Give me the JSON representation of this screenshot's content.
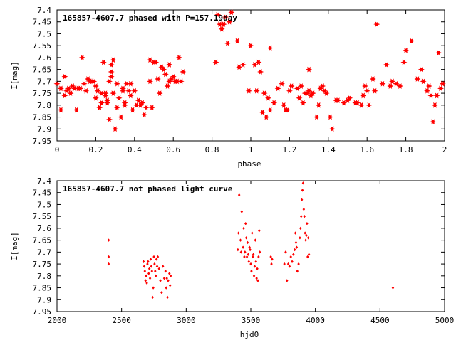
{
  "chart_data": [
    {
      "type": "scatter",
      "title": "165857-4607.7 phased with P=157.19day",
      "xlabel": "phase",
      "ylabel": "I[mag]",
      "xlim": [
        0,
        2
      ],
      "ylim": [
        7.4,
        7.95
      ],
      "y_inverted": true,
      "x_ticks": [
        "0",
        "0.2",
        "0.4",
        "0.6",
        "0.8",
        "1",
        "1.2",
        "1.4",
        "1.6",
        "1.8",
        "2"
      ],
      "y_ticks": [
        "7.4",
        "7.45",
        "7.5",
        "7.55",
        "7.6",
        "7.65",
        "7.7",
        "7.75",
        "7.8",
        "7.85",
        "7.9",
        "7.95"
      ],
      "marker_color": "#ff0000",
      "series": [
        {
          "points": [
            [
              0.0,
              7.71
            ],
            [
              0.02,
              7.73
            ],
            [
              0.02,
              7.82
            ],
            [
              0.04,
              7.76
            ],
            [
              0.04,
              7.68
            ],
            [
              0.05,
              7.74
            ],
            [
              0.06,
              7.73
            ],
            [
              0.07,
              7.75
            ],
            [
              0.08,
              7.72
            ],
            [
              0.09,
              7.73
            ],
            [
              0.1,
              7.82
            ],
            [
              0.11,
              7.73
            ],
            [
              0.12,
              7.73
            ],
            [
              0.13,
              7.6
            ],
            [
              0.14,
              7.71
            ],
            [
              0.15,
              7.74
            ],
            [
              0.16,
              7.69
            ],
            [
              0.17,
              7.7
            ],
            [
              0.18,
              7.7
            ],
            [
              0.19,
              7.7
            ],
            [
              0.2,
              7.72
            ],
            [
              0.2,
              7.77
            ],
            [
              0.21,
              7.74
            ],
            [
              0.22,
              7.81
            ],
            [
              0.23,
              7.75
            ],
            [
              0.23,
              7.79
            ],
            [
              0.24,
              7.62
            ],
            [
              0.25,
              7.76
            ],
            [
              0.25,
              7.75
            ],
            [
              0.26,
              7.78
            ],
            [
              0.26,
              7.79
            ],
            [
              0.27,
              7.86
            ],
            [
              0.27,
              7.7
            ],
            [
              0.28,
              7.66
            ],
            [
              0.28,
              7.63
            ],
            [
              0.28,
              7.68
            ],
            [
              0.29,
              7.75
            ],
            [
              0.29,
              7.61
            ],
            [
              0.3,
              7.9
            ],
            [
              0.31,
              7.71
            ],
            [
              0.31,
              7.81
            ],
            [
              0.32,
              7.77
            ],
            [
              0.33,
              7.85
            ],
            [
              0.34,
              7.74
            ],
            [
              0.34,
              7.73
            ],
            [
              0.35,
              7.8
            ],
            [
              0.35,
              7.79
            ],
            [
              0.36,
              7.71
            ],
            [
              0.37,
              7.74
            ],
            [
              0.38,
              7.71
            ],
            [
              0.38,
              7.76
            ],
            [
              0.39,
              7.82
            ],
            [
              0.4,
              7.74
            ],
            [
              0.41,
              7.8
            ],
            [
              0.42,
              7.78
            ],
            [
              0.43,
              7.8
            ],
            [
              0.44,
              7.79
            ],
            [
              0.45,
              7.84
            ],
            [
              0.46,
              7.81
            ],
            [
              0.48,
              7.7
            ],
            [
              0.48,
              7.61
            ],
            [
              0.49,
              7.81
            ],
            [
              0.5,
              7.62
            ],
            [
              0.51,
              7.62
            ],
            [
              0.52,
              7.69
            ],
            [
              0.53,
              7.75
            ],
            [
              0.54,
              7.64
            ],
            [
              0.55,
              7.65
            ],
            [
              0.56,
              7.67
            ],
            [
              0.57,
              7.72
            ],
            [
              0.58,
              7.63
            ],
            [
              0.58,
              7.7
            ],
            [
              0.59,
              7.69
            ],
            [
              0.6,
              7.68
            ],
            [
              0.61,
              7.7
            ],
            [
              0.62,
              7.7
            ],
            [
              0.63,
              7.6
            ],
            [
              0.64,
              7.7
            ],
            [
              0.65,
              7.66
            ],
            [
              0.82,
              7.62
            ],
            [
              0.83,
              7.42
            ],
            [
              0.84,
              7.46
            ],
            [
              0.85,
              7.48
            ],
            [
              0.86,
              7.46
            ],
            [
              0.87,
              7.43
            ],
            [
              0.88,
              7.54
            ],
            [
              0.89,
              7.45
            ],
            [
              0.9,
              7.41
            ],
            [
              0.93,
              7.53
            ],
            [
              0.94,
              7.64
            ],
            [
              0.96,
              7.63
            ],
            [
              0.99,
              7.74
            ],
            [
              1.0,
              7.55
            ],
            [
              1.02,
              7.63
            ],
            [
              1.03,
              7.74
            ],
            [
              1.04,
              7.62
            ],
            [
              1.05,
              7.66
            ],
            [
              1.06,
              7.83
            ],
            [
              1.07,
              7.75
            ],
            [
              1.08,
              7.85
            ],
            [
              1.09,
              7.77
            ],
            [
              1.1,
              7.56
            ],
            [
              1.1,
              7.82
            ],
            [
              1.12,
              7.79
            ],
            [
              1.14,
              7.73
            ],
            [
              1.16,
              7.71
            ],
            [
              1.17,
              7.8
            ],
            [
              1.18,
              7.82
            ],
            [
              1.19,
              7.82
            ],
            [
              1.2,
              7.74
            ],
            [
              1.21,
              7.72
            ],
            [
              1.24,
              7.73
            ],
            [
              1.25,
              7.77
            ],
            [
              1.26,
              7.72
            ],
            [
              1.27,
              7.79
            ],
            [
              1.28,
              7.75
            ],
            [
              1.29,
              7.75
            ],
            [
              1.3,
              7.74
            ],
            [
              1.3,
              7.65
            ],
            [
              1.31,
              7.76
            ],
            [
              1.32,
              7.75
            ],
            [
              1.34,
              7.85
            ],
            [
              1.35,
              7.8
            ],
            [
              1.36,
              7.73
            ],
            [
              1.37,
              7.72
            ],
            [
              1.38,
              7.74
            ],
            [
              1.39,
              7.75
            ],
            [
              1.41,
              7.85
            ],
            [
              1.42,
              7.9
            ],
            [
              1.44,
              7.78
            ],
            [
              1.45,
              7.78
            ],
            [
              1.48,
              7.79
            ],
            [
              1.5,
              7.78
            ],
            [
              1.51,
              7.77
            ],
            [
              1.54,
              7.79
            ],
            [
              1.55,
              7.79
            ],
            [
              1.57,
              7.8
            ],
            [
              1.58,
              7.76
            ],
            [
              1.59,
              7.72
            ],
            [
              1.6,
              7.74
            ],
            [
              1.61,
              7.8
            ],
            [
              1.63,
              7.69
            ],
            [
              1.64,
              7.74
            ],
            [
              1.65,
              7.46
            ],
            [
              1.68,
              7.71
            ],
            [
              1.7,
              7.63
            ],
            [
              1.72,
              7.72
            ],
            [
              1.73,
              7.7
            ],
            [
              1.75,
              7.71
            ],
            [
              1.77,
              7.72
            ],
            [
              1.79,
              7.62
            ],
            [
              1.8,
              7.57
            ],
            [
              1.83,
              7.53
            ],
            [
              1.86,
              7.69
            ],
            [
              1.88,
              7.65
            ],
            [
              1.89,
              7.7
            ],
            [
              1.91,
              7.74
            ],
            [
              1.92,
              7.72
            ],
            [
              1.93,
              7.76
            ],
            [
              1.94,
              7.87
            ],
            [
              1.95,
              7.8
            ],
            [
              1.96,
              7.76
            ],
            [
              1.97,
              7.58
            ],
            [
              1.98,
              7.73
            ],
            [
              1.99,
              7.71
            ]
          ]
        }
      ]
    },
    {
      "type": "scatter",
      "title": "165857-4607.7 not phased light curve",
      "xlabel": "hjd0",
      "ylabel": "I[mag]",
      "xlim": [
        2000,
        5000
      ],
      "ylim": [
        7.4,
        7.95
      ],
      "y_inverted": true,
      "x_ticks": [
        "2000",
        "2500",
        "3000",
        "3500",
        "4000",
        "4500",
        "5000"
      ],
      "y_ticks": [
        "7.4",
        "7.45",
        "7.5",
        "7.55",
        "7.6",
        "7.65",
        "7.7",
        "7.75",
        "7.8",
        "7.85",
        "7.9",
        "7.95"
      ],
      "marker_color": "#ff0000",
      "series": [
        {
          "points": [
            [
              2400,
              7.65
            ],
            [
              2400,
              7.72
            ],
            [
              2400,
              7.75
            ],
            [
              2670,
              7.74
            ],
            [
              2675,
              7.76
            ],
            [
              2680,
              7.78
            ],
            [
              2685,
              7.82
            ],
            [
              2690,
              7.8
            ],
            [
              2695,
              7.83
            ],
            [
              2700,
              7.75
            ],
            [
              2705,
              7.74
            ],
            [
              2710,
              7.79
            ],
            [
              2715,
              7.77
            ],
            [
              2720,
              7.81
            ],
            [
              2725,
              7.73
            ],
            [
              2730,
              7.76
            ],
            [
              2735,
              7.78
            ],
            [
              2740,
              7.89
            ],
            [
              2745,
              7.85
            ],
            [
              2750,
              7.72
            ],
            [
              2755,
              7.75
            ],
            [
              2760,
              7.78
            ],
            [
              2765,
              7.8
            ],
            [
              2770,
              7.73
            ],
            [
              2775,
              7.76
            ],
            [
              2780,
              7.72
            ],
            [
              2790,
              7.77
            ],
            [
              2800,
              7.82
            ],
            [
              2810,
              7.87
            ],
            [
              2820,
              7.76
            ],
            [
              2830,
              7.81
            ],
            [
              2840,
              7.78
            ],
            [
              2845,
              7.85
            ],
            [
              2850,
              7.81
            ],
            [
              2855,
              7.89
            ],
            [
              2860,
              7.82
            ],
            [
              2870,
              7.79
            ],
            [
              2875,
              7.84
            ],
            [
              2880,
              7.8
            ],
            [
              3400,
              7.69
            ],
            [
              3405,
              7.62
            ],
            [
              3410,
              7.46
            ],
            [
              3420,
              7.65
            ],
            [
              3425,
              7.7
            ],
            [
              3430,
              7.53
            ],
            [
              3440,
              7.68
            ],
            [
              3445,
              7.6
            ],
            [
              3450,
              7.72
            ],
            [
              3455,
              7.7
            ],
            [
              3460,
              7.58
            ],
            [
              3465,
              7.64
            ],
            [
              3470,
              7.72
            ],
            [
              3475,
              7.66
            ],
            [
              3480,
              7.71
            ],
            [
              3485,
              7.74
            ],
            [
              3490,
              7.68
            ],
            [
              3495,
              7.69
            ],
            [
              3500,
              7.75
            ],
            [
              3505,
              7.78
            ],
            [
              3510,
              7.62
            ],
            [
              3515,
              7.72
            ],
            [
              3520,
              7.71
            ],
            [
              3525,
              7.8
            ],
            [
              3530,
              7.76
            ],
            [
              3535,
              7.65
            ],
            [
              3540,
              7.74
            ],
            [
              3545,
              7.81
            ],
            [
              3550,
              7.77
            ],
            [
              3555,
              7.82
            ],
            [
              3560,
              7.72
            ],
            [
              3565,
              7.61
            ],
            [
              3570,
              7.7
            ],
            [
              3655,
              7.72
            ],
            [
              3660,
              7.75
            ],
            [
              3665,
              7.73
            ],
            [
              3760,
              7.75
            ],
            [
              3770,
              7.7
            ],
            [
              3780,
              7.82
            ],
            [
              3790,
              7.75
            ],
            [
              3800,
              7.76
            ],
            [
              3810,
              7.72
            ],
            [
              3820,
              7.74
            ],
            [
              3830,
              7.71
            ],
            [
              3840,
              7.69
            ],
            [
              3845,
              7.62
            ],
            [
              3850,
              7.66
            ],
            [
              3855,
              7.68
            ],
            [
              3860,
              7.78
            ],
            [
              3870,
              7.75
            ],
            [
              3880,
              7.64
            ],
            [
              3885,
              7.6
            ],
            [
              3890,
              7.55
            ],
            [
              3895,
              7.48
            ],
            [
              3900,
              7.44
            ],
            [
              3905,
              7.41
            ],
            [
              3910,
              7.52
            ],
            [
              3915,
              7.55
            ],
            [
              3920,
              7.62
            ],
            [
              3925,
              7.65
            ],
            [
              3930,
              7.63
            ],
            [
              3935,
              7.58
            ],
            [
              3940,
              7.72
            ],
            [
              3945,
              7.64
            ],
            [
              3950,
              7.71
            ],
            [
              4600,
              7.85
            ]
          ]
        }
      ]
    }
  ]
}
